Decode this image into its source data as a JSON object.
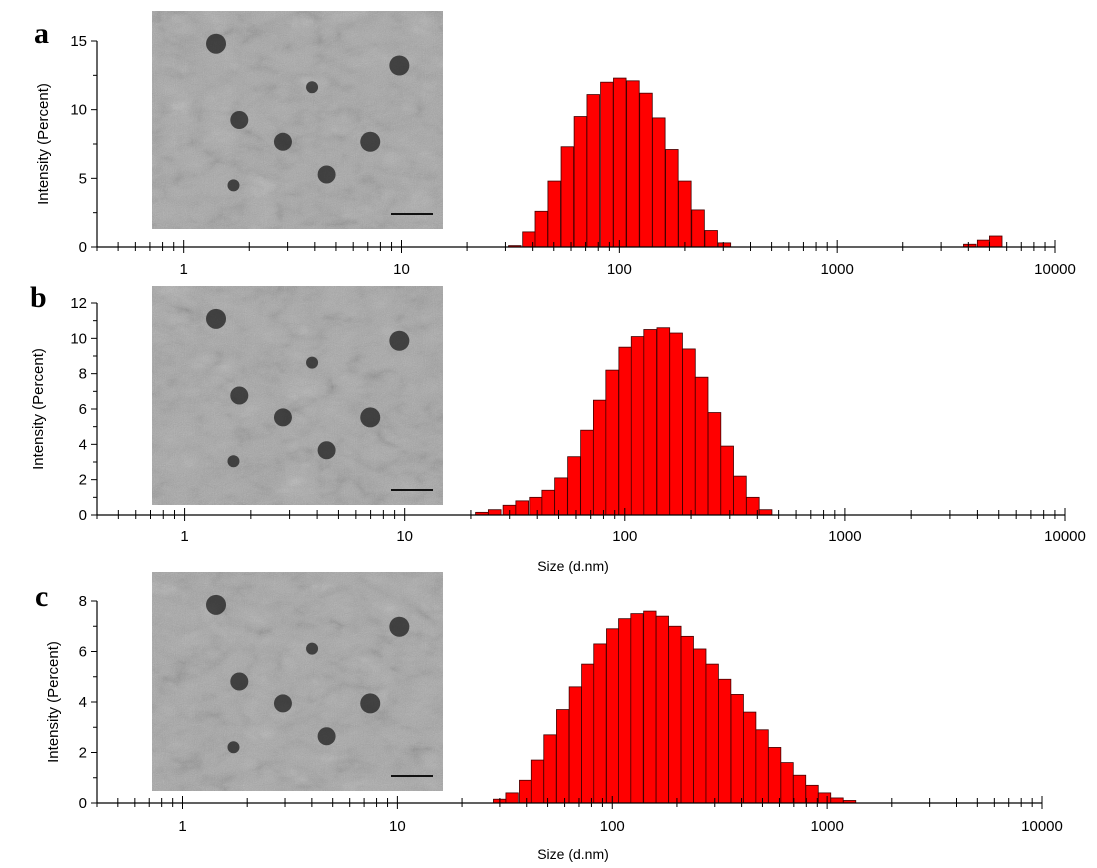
{
  "colors": {
    "bar_fill": "#ff0000",
    "bar_edge": "#400000",
    "axis": "#000000"
  },
  "chart_data": [
    {
      "type": "bar",
      "panel": "a",
      "xscale": "log",
      "xlim": [
        0.4,
        10000
      ],
      "xticks": [
        "1",
        "10",
        "100",
        "1000",
        "10000"
      ],
      "ylabel": "Intensity (Percent)",
      "xlabel": "",
      "ylim": [
        0,
        15
      ],
      "yticks": [
        0,
        5,
        10,
        15
      ],
      "inset": "TEM micrograph",
      "bins": [
        {
          "x": 31,
          "y": 0.1
        },
        {
          "x": 36,
          "y": 1.1
        },
        {
          "x": 41,
          "y": 2.6
        },
        {
          "x": 47,
          "y": 4.8
        },
        {
          "x": 54,
          "y": 7.3
        },
        {
          "x": 62,
          "y": 9.5
        },
        {
          "x": 71,
          "y": 11.1
        },
        {
          "x": 82,
          "y": 12.0
        },
        {
          "x": 94,
          "y": 12.3
        },
        {
          "x": 108,
          "y": 12.1
        },
        {
          "x": 124,
          "y": 11.2
        },
        {
          "x": 142,
          "y": 9.4
        },
        {
          "x": 163,
          "y": 7.1
        },
        {
          "x": 187,
          "y": 4.8
        },
        {
          "x": 215,
          "y": 2.7
        },
        {
          "x": 247,
          "y": 1.2
        },
        {
          "x": 284,
          "y": 0.3
        },
        {
          "x": 3800,
          "y": 0.2
        },
        {
          "x": 4400,
          "y": 0.5
        },
        {
          "x": 5000,
          "y": 0.8
        }
      ]
    },
    {
      "type": "bar",
      "panel": "b",
      "xscale": "log",
      "xlim": [
        0.4,
        10000
      ],
      "xticks": [
        "1",
        "10",
        "100",
        "1000",
        "10000"
      ],
      "ylabel": "Intensity (Percent)",
      "xlabel": "Size (d.nm)",
      "ylim": [
        0,
        12
      ],
      "yticks": [
        0,
        2,
        4,
        6,
        8,
        10,
        12
      ],
      "inset": "TEM micrograph",
      "bins": [
        {
          "x": 21,
          "y": 0.15
        },
        {
          "x": 24,
          "y": 0.3
        },
        {
          "x": 28,
          "y": 0.55
        },
        {
          "x": 32,
          "y": 0.8
        },
        {
          "x": 37,
          "y": 1.0
        },
        {
          "x": 42,
          "y": 1.4
        },
        {
          "x": 48,
          "y": 2.1
        },
        {
          "x": 55,
          "y": 3.3
        },
        {
          "x": 63,
          "y": 4.8
        },
        {
          "x": 72,
          "y": 6.5
        },
        {
          "x": 82,
          "y": 8.2
        },
        {
          "x": 94,
          "y": 9.5
        },
        {
          "x": 107,
          "y": 10.1
        },
        {
          "x": 122,
          "y": 10.5
        },
        {
          "x": 140,
          "y": 10.6
        },
        {
          "x": 160,
          "y": 10.3
        },
        {
          "x": 183,
          "y": 9.4
        },
        {
          "x": 209,
          "y": 7.8
        },
        {
          "x": 239,
          "y": 5.8
        },
        {
          "x": 273,
          "y": 3.9
        },
        {
          "x": 312,
          "y": 2.2
        },
        {
          "x": 357,
          "y": 1.0
        },
        {
          "x": 408,
          "y": 0.3
        }
      ]
    },
    {
      "type": "bar",
      "panel": "c",
      "xscale": "log",
      "xlim": [
        0.4,
        10000
      ],
      "xticks": [
        "1",
        "10",
        "100",
        "1000",
        "10000"
      ],
      "ylabel": "Intensity (Percent)",
      "xlabel": "Size (d.nm)",
      "ylim": [
        0,
        8
      ],
      "yticks": [
        0,
        2,
        4,
        6,
        8
      ],
      "inset": "TEM micrograph",
      "bins": [
        {
          "x": 28,
          "y": 0.15
        },
        {
          "x": 32,
          "y": 0.4
        },
        {
          "x": 37,
          "y": 0.9
        },
        {
          "x": 42,
          "y": 1.7
        },
        {
          "x": 48,
          "y": 2.7
        },
        {
          "x": 55,
          "y": 3.7
        },
        {
          "x": 63,
          "y": 4.6
        },
        {
          "x": 72,
          "y": 5.5
        },
        {
          "x": 82,
          "y": 6.3
        },
        {
          "x": 94,
          "y": 6.9
        },
        {
          "x": 107,
          "y": 7.3
        },
        {
          "x": 122,
          "y": 7.5
        },
        {
          "x": 140,
          "y": 7.6
        },
        {
          "x": 160,
          "y": 7.4
        },
        {
          "x": 183,
          "y": 7.0
        },
        {
          "x": 209,
          "y": 6.6
        },
        {
          "x": 239,
          "y": 6.1
        },
        {
          "x": 273,
          "y": 5.5
        },
        {
          "x": 312,
          "y": 4.9
        },
        {
          "x": 357,
          "y": 4.3
        },
        {
          "x": 408,
          "y": 3.6
        },
        {
          "x": 466,
          "y": 2.9
        },
        {
          "x": 533,
          "y": 2.2
        },
        {
          "x": 609,
          "y": 1.6
        },
        {
          "x": 696,
          "y": 1.1
        },
        {
          "x": 796,
          "y": 0.7
        },
        {
          "x": 910,
          "y": 0.4
        },
        {
          "x": 1040,
          "y": 0.2
        },
        {
          "x": 1190,
          "y": 0.1
        }
      ]
    }
  ]
}
